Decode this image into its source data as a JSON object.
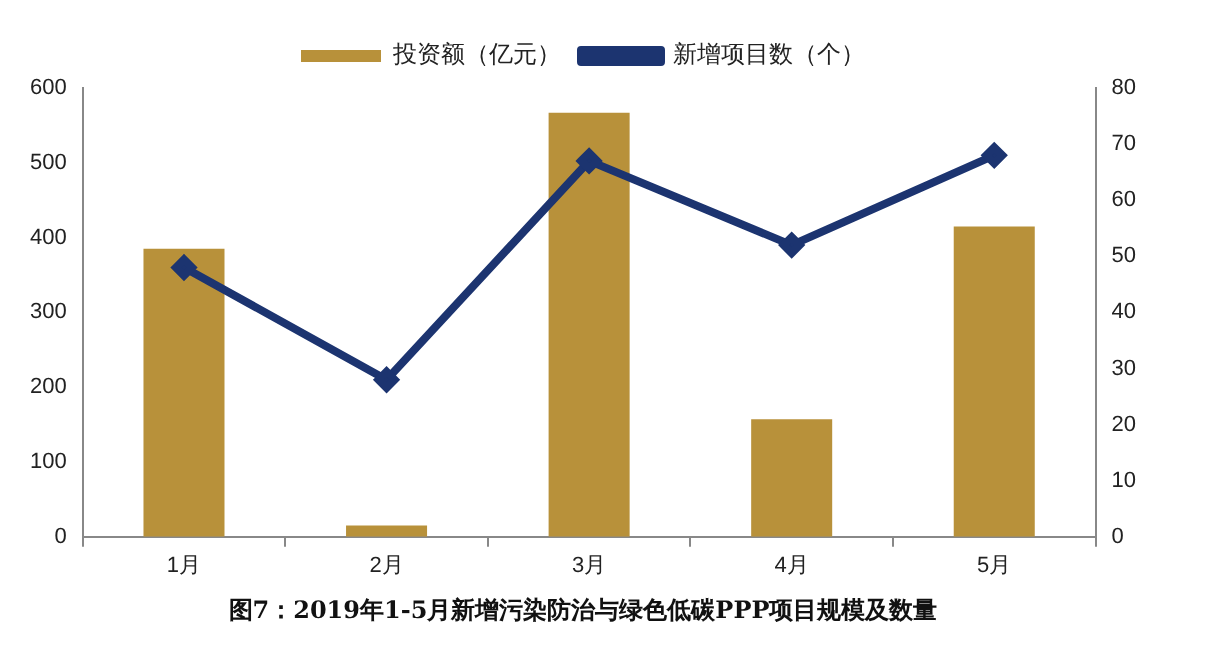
{
  "chart_data": {
    "type": "bar",
    "title": "图7：2019年1-5月新增污染防治与绿色低碳PPP项目规模及数量",
    "categories": [
      "1月",
      "2月",
      "3月",
      "4月",
      "5月"
    ],
    "series": [
      {
        "name": "投资额（亿元）",
        "color": "#b8913a",
        "values": [
          385,
          15,
          567,
          157,
          415
        ]
      },
      {
        "name": "新增项目数（个）",
        "type": "line",
        "axis": "y2",
        "color": "#1c3470",
        "values": [
          48,
          28,
          67,
          52,
          68
        ]
      }
    ],
    "ylim": [
      0,
      600
    ],
    "yticks": [
      0,
      100,
      200,
      300,
      400,
      500,
      600
    ],
    "y2lim": [
      0,
      80
    ],
    "y2ticks": [
      0,
      10,
      20,
      30,
      40,
      50,
      60,
      70,
      80
    ],
    "grid": false,
    "legend": "top",
    "marker": "diamond",
    "line_style": "solid"
  }
}
